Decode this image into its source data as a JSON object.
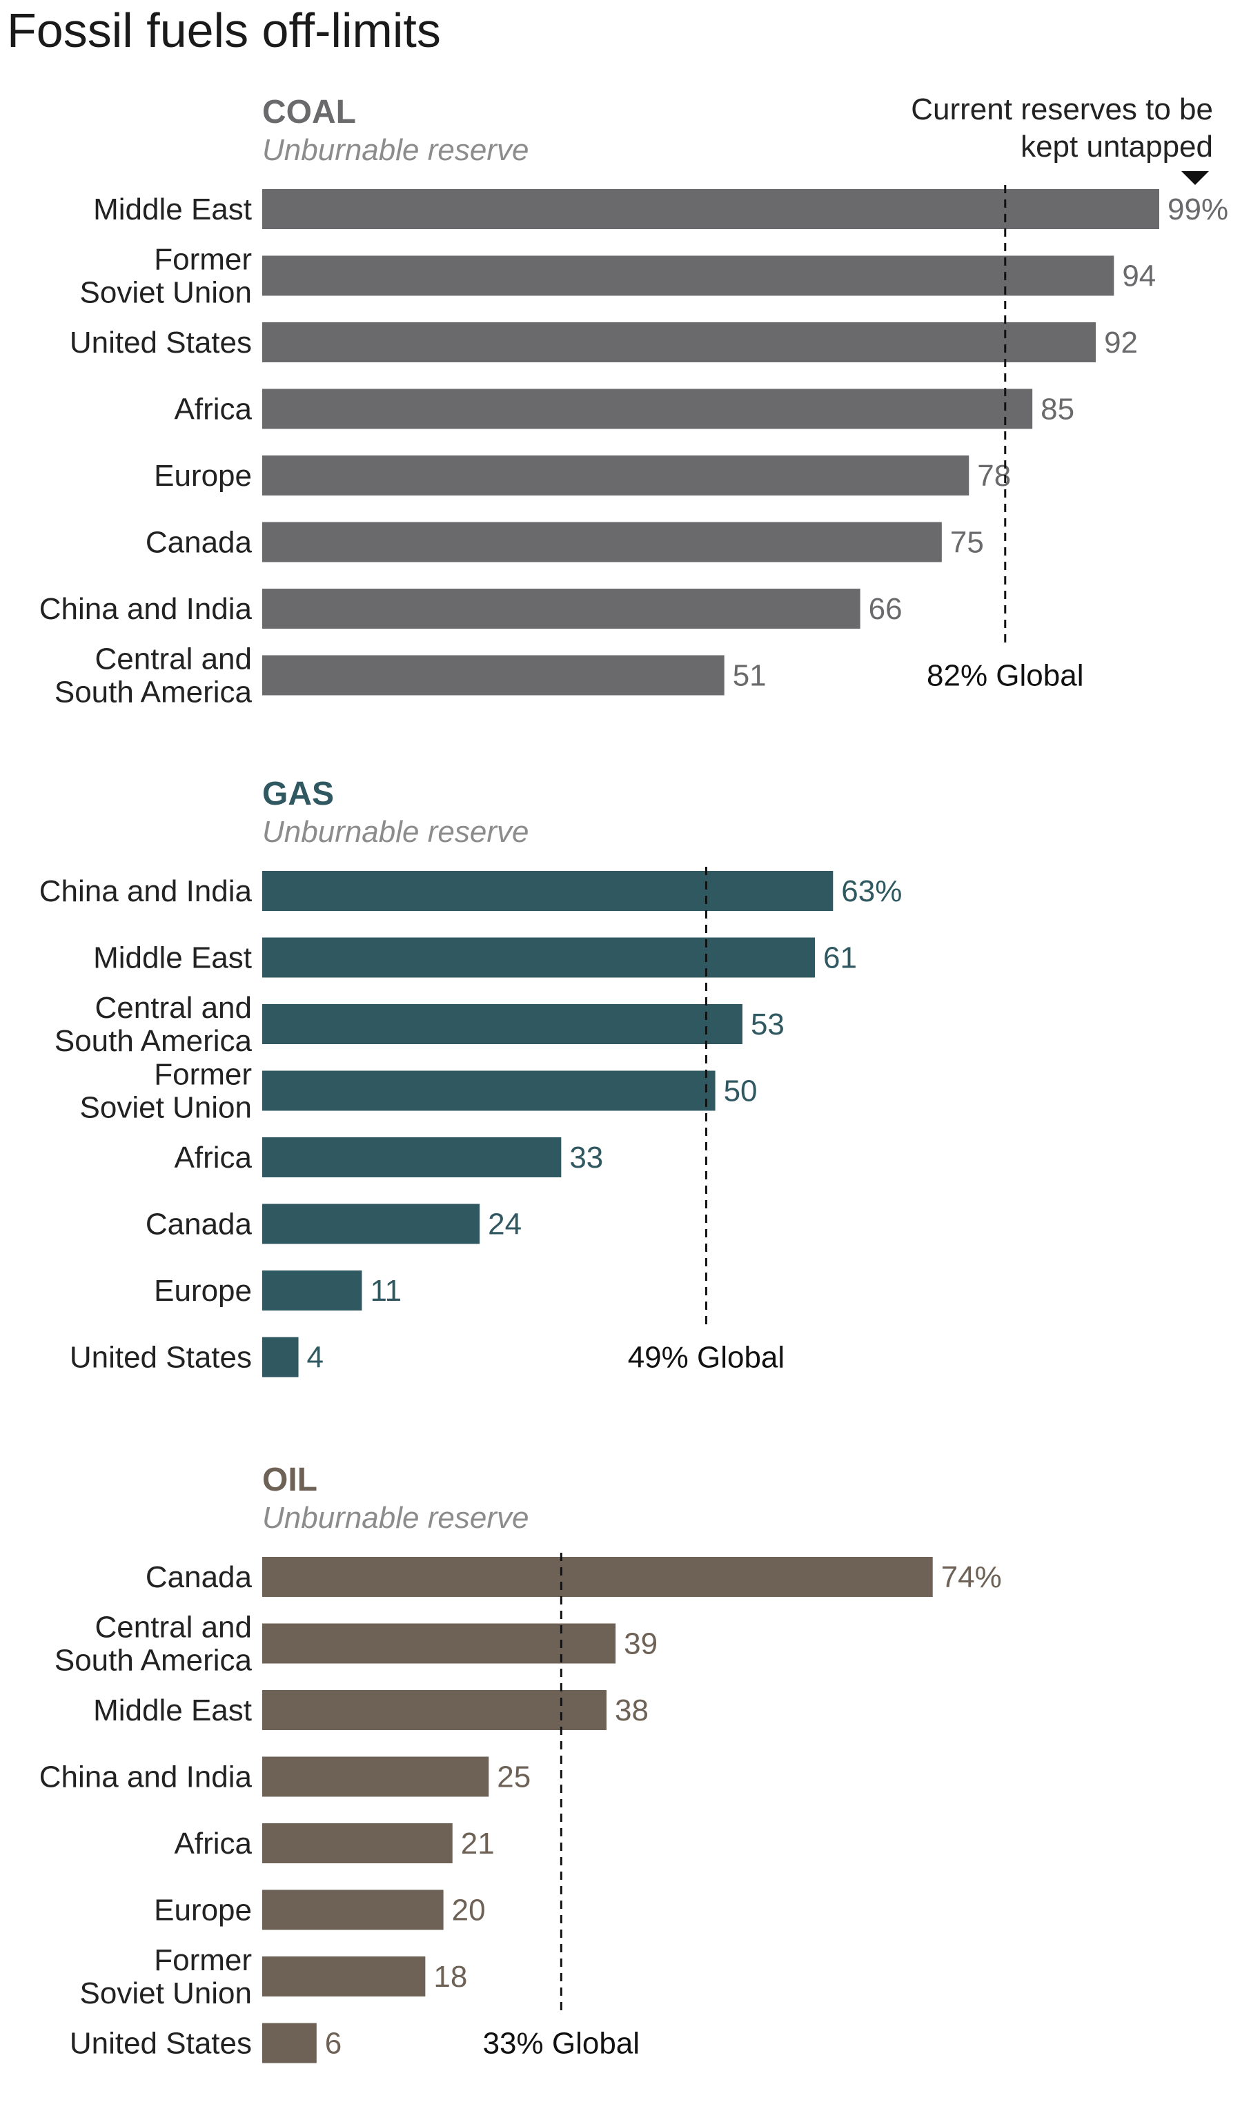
{
  "title": "Fossil fuels off-limits",
  "annotation": {
    "text_line1": "Current reserves to be",
    "text_line2": "kept untapped"
  },
  "colors": {
    "coal": "#6a6a6d",
    "gas": "#2f5860",
    "oil": "#6e6256",
    "subtitle": "#8c8c8c",
    "label": "#222222"
  },
  "chart_data": [
    {
      "type": "bar",
      "orientation": "horizontal",
      "title": "COAL",
      "subtitle": "Unburnable reserve",
      "color_key": "coal",
      "unit": "%",
      "xlim": [
        0,
        100
      ],
      "categories": [
        "Middle East",
        "Former Soviet Union",
        "United States",
        "Africa",
        "Europe",
        "Canada",
        "China and India",
        "Central and South America"
      ],
      "category_lines": [
        [
          "Middle East"
        ],
        [
          "Former",
          "Soviet Union"
        ],
        [
          "United States"
        ],
        [
          "Africa"
        ],
        [
          "Europe"
        ],
        [
          "Canada"
        ],
        [
          "China and India"
        ],
        [
          "Central and",
          "South America"
        ]
      ],
      "values": [
        99,
        94,
        92,
        85,
        78,
        75,
        66,
        51
      ],
      "value_labels": [
        "99%",
        "94",
        "92",
        "85",
        "78",
        "75",
        "66",
        "51"
      ],
      "reference_line": {
        "value": 82,
        "label": "82% Global"
      }
    },
    {
      "type": "bar",
      "orientation": "horizontal",
      "title": "GAS",
      "subtitle": "Unburnable reserve",
      "color_key": "gas",
      "unit": "%",
      "xlim": [
        0,
        100
      ],
      "categories": [
        "China and India",
        "Middle East",
        "Central and South America",
        "Former Soviet Union",
        "Africa",
        "Canada",
        "Europe",
        "United States"
      ],
      "category_lines": [
        [
          "China and India"
        ],
        [
          "Middle East"
        ],
        [
          "Central and",
          "South America"
        ],
        [
          "Former",
          "Soviet Union"
        ],
        [
          "Africa"
        ],
        [
          "Canada"
        ],
        [
          "Europe"
        ],
        [
          "United States"
        ]
      ],
      "values": [
        63,
        61,
        53,
        50,
        33,
        24,
        11,
        4
      ],
      "value_labels": [
        "63%",
        "61",
        "53",
        "50",
        "33",
        "24",
        "11",
        "4"
      ],
      "reference_line": {
        "value": 49,
        "label": "49% Global"
      }
    },
    {
      "type": "bar",
      "orientation": "horizontal",
      "title": "OIL",
      "subtitle": "Unburnable reserve",
      "color_key": "oil",
      "unit": "%",
      "xlim": [
        0,
        100
      ],
      "categories": [
        "Canada",
        "Central and South America",
        "Middle East",
        "China and India",
        "Africa",
        "Europe",
        "Former Soviet Union",
        "United States"
      ],
      "category_lines": [
        [
          "Canada"
        ],
        [
          "Central and",
          "South America"
        ],
        [
          "Middle East"
        ],
        [
          "China and India"
        ],
        [
          "Africa"
        ],
        [
          "Europe"
        ],
        [
          "Former",
          "Soviet Union"
        ],
        [
          "United States"
        ]
      ],
      "values": [
        74,
        39,
        38,
        25,
        21,
        20,
        18,
        6
      ],
      "value_labels": [
        "74%",
        "39",
        "38",
        "25",
        "21",
        "20",
        "18",
        "6"
      ],
      "reference_line": {
        "value": 33,
        "label": "33% Global"
      }
    }
  ]
}
